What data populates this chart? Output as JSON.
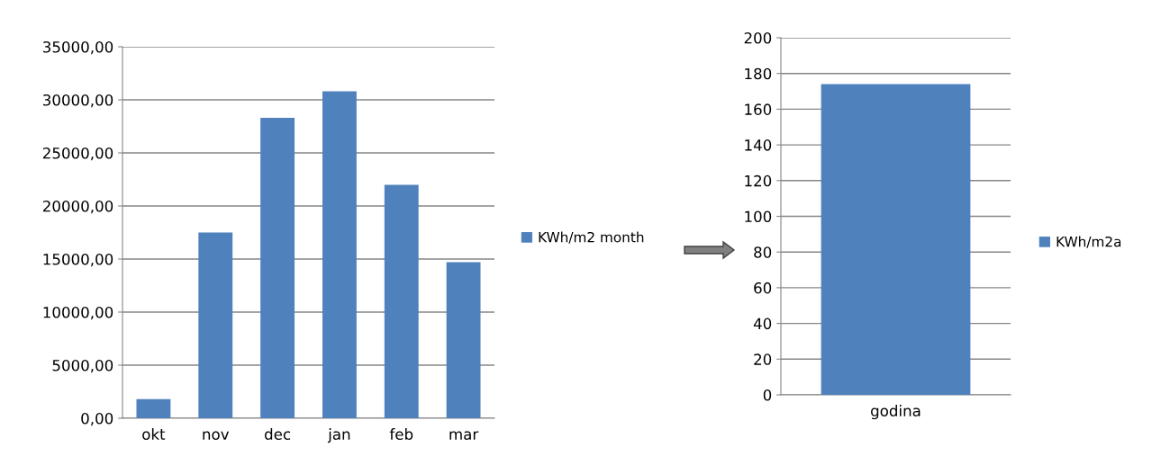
{
  "chart_data": [
    {
      "type": "bar",
      "categories": [
        "okt",
        "nov",
        "dec",
        "jan",
        "feb",
        "mar"
      ],
      "series": [
        {
          "name": "KWh/m2 month",
          "color": "#4f81bd",
          "values": [
            1800,
            17500,
            28300,
            30800,
            22000,
            14700
          ]
        }
      ],
      "ylim": [
        0,
        35000
      ],
      "yticks": [
        {
          "value": 0,
          "label": "0,00"
        },
        {
          "value": 5000,
          "label": "5000,00"
        },
        {
          "value": 10000,
          "label": "10000,00"
        },
        {
          "value": 15000,
          "label": "15000,00"
        },
        {
          "value": 20000,
          "label": "20000,00"
        },
        {
          "value": 25000,
          "label": "25000,00"
        },
        {
          "value": 30000,
          "label": "30000,00"
        },
        {
          "value": 35000,
          "label": "35000,00"
        }
      ],
      "grid": "y",
      "legend": "right"
    },
    {
      "type": "bar",
      "categories": [
        "godina"
      ],
      "series": [
        {
          "name": "KWh/m2a",
          "color": "#4f81bd",
          "values": [
            174
          ]
        }
      ],
      "ylim": [
        0,
        200
      ],
      "yticks": [
        0,
        20,
        40,
        60,
        80,
        100,
        120,
        140,
        160,
        180,
        200
      ],
      "grid": "y",
      "legend": "right"
    }
  ]
}
